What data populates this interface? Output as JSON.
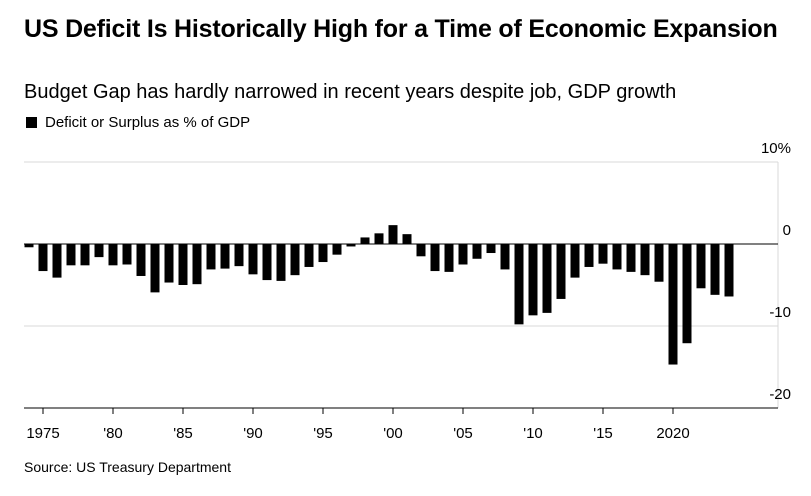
{
  "title": "US Deficit Is Historically High for a Time of Economic Expansion",
  "subtitle": "Budget Gap has hardly narrowed in recent years despite job, GDP growth",
  "source": "Source: US Treasury Department",
  "colors": {
    "bar": "#000000",
    "grid": "#d9d9d9",
    "zero_line": "#000000",
    "axis": "#000000"
  },
  "chart_data": {
    "type": "bar",
    "title": "US Deficit Is Historically High for a Time of Economic Expansion",
    "subtitle": "Budget Gap has hardly narrowed in recent years despite job, GDP growth",
    "xlabel": "",
    "ylabel": "",
    "ylim": [
      -20,
      10
    ],
    "y_ticks": [
      10,
      0,
      -10,
      -20
    ],
    "y_tick_labels": [
      "10%",
      "0",
      "-10",
      "-20"
    ],
    "y_axis_position": "right",
    "grid": true,
    "legend": "top-left",
    "x_tick_years": [
      1975,
      1980,
      1985,
      1990,
      1995,
      2000,
      2005,
      2010,
      2015,
      2020
    ],
    "x_tick_labels": [
      "1975",
      "'80",
      "'85",
      "'90",
      "'95",
      "'00",
      "'05",
      "'10",
      "'15",
      "2020"
    ],
    "categories": [
      1974,
      1975,
      1976,
      1977,
      1978,
      1979,
      1980,
      1981,
      1982,
      1983,
      1984,
      1985,
      1986,
      1987,
      1988,
      1989,
      1990,
      1991,
      1992,
      1993,
      1994,
      1995,
      1996,
      1997,
      1998,
      1999,
      2000,
      2001,
      2002,
      2003,
      2004,
      2005,
      2006,
      2007,
      2008,
      2009,
      2010,
      2011,
      2012,
      2013,
      2014,
      2015,
      2016,
      2017,
      2018,
      2019,
      2020,
      2021,
      2022,
      2023,
      2024
    ],
    "series": [
      {
        "name": "Deficit or Surplus as % of GDP",
        "values": [
          -0.4,
          -3.3,
          -4.1,
          -2.6,
          -2.6,
          -1.6,
          -2.6,
          -2.5,
          -3.9,
          -5.9,
          -4.7,
          -5.0,
          -4.9,
          -3.1,
          -3.0,
          -2.7,
          -3.7,
          -4.4,
          -4.5,
          -3.8,
          -2.8,
          -2.2,
          -1.3,
          -0.3,
          0.8,
          1.3,
          2.3,
          1.2,
          -1.5,
          -3.3,
          -3.4,
          -2.5,
          -1.8,
          -1.1,
          -3.1,
          -9.8,
          -8.7,
          -8.4,
          -6.7,
          -4.1,
          -2.8,
          -2.4,
          -3.1,
          -3.4,
          -3.8,
          -4.6,
          -14.7,
          -12.1,
          -5.4,
          -6.2,
          -6.4
        ]
      }
    ]
  }
}
